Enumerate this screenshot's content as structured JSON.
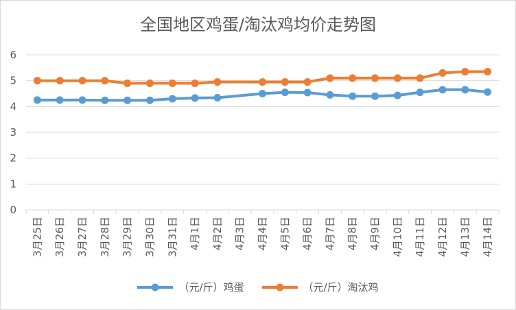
{
  "chart_data": {
    "type": "line",
    "title": "全国地区鸡蛋/淘汰鸡均价走势图",
    "xlabel": "",
    "ylabel": "",
    "ylim": [
      0,
      6
    ],
    "yticks": [
      0,
      1,
      2,
      3,
      4,
      5,
      6
    ],
    "grid": true,
    "legend_position": "bottom",
    "categories": [
      "3月25日",
      "3月26日",
      "3月27日",
      "3月28日",
      "3月29日",
      "3月30日",
      "3月31日",
      "4月1日",
      "4月2日",
      "4月3日",
      "4月4日",
      "4月5日",
      "4月6日",
      "4月7日",
      "4月8日",
      "4月9日",
      "4月10日",
      "4月11日",
      "4月12日",
      "4月13日",
      "4月14日"
    ],
    "series": [
      {
        "name": "（元/斤）鸡蛋",
        "color": "#5b9bd5",
        "values": [
          4.25,
          4.25,
          4.25,
          4.24,
          4.24,
          4.24,
          4.3,
          4.33,
          4.34,
          null,
          4.5,
          4.55,
          4.54,
          4.45,
          4.4,
          4.4,
          4.43,
          4.55,
          4.65,
          4.65,
          4.56
        ]
      },
      {
        "name": "（元/斤）淘汰鸡",
        "color": "#ed7d31",
        "values": [
          5.0,
          5.0,
          5.0,
          5.0,
          4.9,
          4.9,
          4.9,
          4.9,
          4.95,
          null,
          4.95,
          4.95,
          4.95,
          5.1,
          5.1,
          5.1,
          5.1,
          5.1,
          5.3,
          5.35,
          5.35
        ]
      }
    ]
  }
}
